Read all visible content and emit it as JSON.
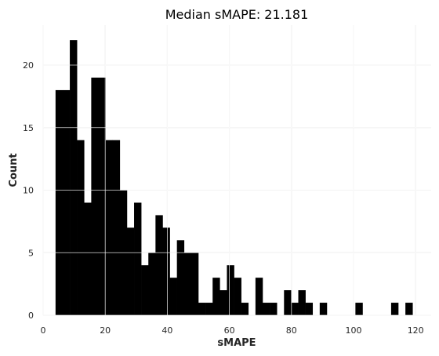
{
  "chart_data": {
    "type": "bar",
    "title": "Median sMAPE: 21.181",
    "xlabel": "sMAPE",
    "ylabel": "Count",
    "xlim": [
      0,
      125
    ],
    "ylim": [
      0,
      23.2
    ],
    "xticks": [
      0,
      20,
      40,
      60,
      80,
      100,
      120
    ],
    "yticks": [
      0,
      5,
      10,
      15,
      20
    ],
    "grid": true,
    "bin_width": 2.3,
    "bins": [
      {
        "start": 4.0,
        "count": 18
      },
      {
        "start": 6.3,
        "count": 18
      },
      {
        "start": 8.6,
        "count": 22
      },
      {
        "start": 10.9,
        "count": 14
      },
      {
        "start": 13.2,
        "count": 9
      },
      {
        "start": 15.5,
        "count": 19
      },
      {
        "start": 17.8,
        "count": 19
      },
      {
        "start": 20.1,
        "count": 14
      },
      {
        "start": 22.4,
        "count": 14
      },
      {
        "start": 24.7,
        "count": 10
      },
      {
        "start": 27.0,
        "count": 7
      },
      {
        "start": 29.3,
        "count": 9
      },
      {
        "start": 31.6,
        "count": 4
      },
      {
        "start": 33.9,
        "count": 5
      },
      {
        "start": 36.2,
        "count": 8
      },
      {
        "start": 38.5,
        "count": 7
      },
      {
        "start": 40.8,
        "count": 3
      },
      {
        "start": 43.1,
        "count": 6
      },
      {
        "start": 45.4,
        "count": 5
      },
      {
        "start": 47.7,
        "count": 5
      },
      {
        "start": 50.0,
        "count": 1
      },
      {
        "start": 52.3,
        "count": 1
      },
      {
        "start": 54.6,
        "count": 3
      },
      {
        "start": 56.9,
        "count": 2
      },
      {
        "start": 59.2,
        "count": 4
      },
      {
        "start": 61.5,
        "count": 3
      },
      {
        "start": 63.8,
        "count": 1
      },
      {
        "start": 68.4,
        "count": 3
      },
      {
        "start": 70.7,
        "count": 1
      },
      {
        "start": 73.0,
        "count": 1
      },
      {
        "start": 77.6,
        "count": 2
      },
      {
        "start": 79.9,
        "count": 1
      },
      {
        "start": 82.2,
        "count": 2
      },
      {
        "start": 84.5,
        "count": 1
      },
      {
        "start": 89.1,
        "count": 1
      },
      {
        "start": 100.6,
        "count": 1
      },
      {
        "start": 112.1,
        "count": 1
      },
      {
        "start": 116.7,
        "count": 1
      }
    ]
  }
}
